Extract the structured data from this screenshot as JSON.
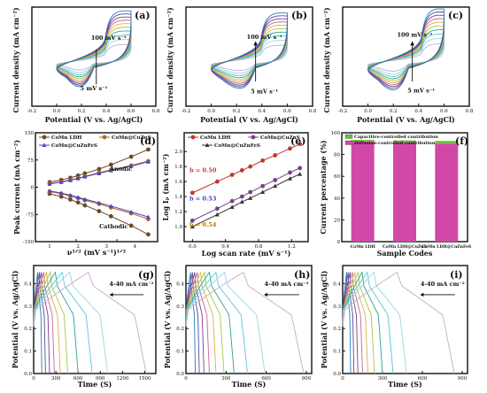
{
  "palette": [
    "#2b7bba",
    "#4d4d9a",
    "#7b3e8e",
    "#c06a8c",
    "#e0b040",
    "#a8c840",
    "#2aa68a",
    "#56c8d8",
    "#9ad4e6",
    "#c8a8d0"
  ],
  "chart_data": [
    {
      "id": "a",
      "type": "line",
      "label": "(a)",
      "xlabel": "Potential (V vs. Ag/AgCl)",
      "ylabel": "Current density (mA cm⁻²)",
      "xticks": [
        "-0.2",
        "0.0",
        "0.2",
        "0.4",
        "0.6",
        "0.8"
      ],
      "xlim": [
        -0.2,
        0.8
      ],
      "annotations": [
        "100 mV s⁻¹",
        "5 mV s⁻¹"
      ],
      "curves": 10
    },
    {
      "id": "b",
      "type": "line",
      "label": "(b)",
      "xlabel": "Potential (V vs. Ag/AgCl)",
      "ylabel": "Current density (mA cm⁻²)",
      "xticks": [
        "-0.2",
        "0.0",
        "0.2",
        "0.4",
        "0.6",
        "0.8"
      ],
      "xlim": [
        -0.2,
        0.8
      ],
      "annotations": [
        "100 mV s⁻¹",
        "5 mV s⁻¹"
      ],
      "curves": 10
    },
    {
      "id": "c",
      "type": "line",
      "label": "(c)",
      "xlabel": "Potential (V vs. Ag/AgCl)",
      "ylabel": "Current density (mA cm⁻²)",
      "xticks": [
        "-0.2",
        "0.0",
        "0.2",
        "0.4",
        "0.6",
        "0.8"
      ],
      "xlim": [
        -0.2,
        0.8
      ],
      "annotations": [
        "100 mV s⁻¹",
        "5 mV s⁻¹"
      ],
      "curves": 10
    },
    {
      "id": "d",
      "type": "line",
      "label": "(d)",
      "xlabel": "ν¹ᐟ² (mV s⁻¹)¹ᐟ²",
      "ylabel": "Peak current  (mA cm⁻²)",
      "xticks": [
        "1",
        "2",
        "3",
        "4"
      ],
      "xlim": [
        0.5,
        4.8
      ],
      "yticks": [
        "150",
        "75",
        "0",
        "-75",
        "-150"
      ],
      "ylim": [
        -150,
        150
      ],
      "annotations": [
        "Anodic",
        "Cathodic"
      ],
      "x": [
        1.0,
        1.41,
        1.73,
        2.0,
        2.24,
        2.74,
        3.16,
        3.87,
        4.47
      ],
      "series": [
        {
          "name": "CoMn LDH",
          "color": "#6b4a26",
          "marker": "circle",
          "anodic": [
            14,
            20,
            26,
            32,
            38,
            50,
            62,
            84,
            104
          ],
          "cathodic": [
            -18,
            -26,
            -34,
            -42,
            -50,
            -66,
            -80,
            -106,
            -130
          ]
        },
        {
          "name": "CoMn@CuZnS",
          "color": "#b06820",
          "marker": "circle",
          "anodic": [
            10,
            15,
            20,
            25,
            30,
            40,
            48,
            60,
            72
          ],
          "cathodic": [
            -12,
            -18,
            -24,
            -30,
            -36,
            -46,
            -56,
            -72,
            -88
          ]
        },
        {
          "name": "CoMn@CuZnFeS",
          "color": "#4848c0",
          "marker": "triangle",
          "anodic": [
            9,
            14,
            19,
            24,
            29,
            38,
            46,
            58,
            70
          ],
          "cathodic": [
            -10,
            -16,
            -22,
            -28,
            -33,
            -43,
            -52,
            -68,
            -82
          ]
        }
      ]
    },
    {
      "id": "e",
      "type": "line",
      "label": "(e)",
      "xlabel": "Log scan rate (mV s⁻¹)",
      "ylabel": "Log Iₚ (mA cm⁻²)",
      "xticks": [
        "0.0",
        "0.4",
        "0.8",
        "1.2"
      ],
      "xlim": [
        -0.1,
        1.4
      ],
      "yticks": [
        "2.0",
        "1.8",
        "1.6",
        "1.4",
        "1.2",
        "1.0"
      ],
      "ylim": [
        0.8,
        2.25
      ],
      "x": [
        0.0,
        0.3,
        0.48,
        0.6,
        0.7,
        0.85,
        1.0,
        1.18,
        1.3
      ],
      "series": [
        {
          "name": "CoMn LDH",
          "color": "#c0392b",
          "marker": "circle",
          "values": [
            1.45,
            1.6,
            1.69,
            1.75,
            1.8,
            1.88,
            1.95,
            2.04,
            2.1
          ],
          "slope": "b = 0.50"
        },
        {
          "name": "CoMn@CuZnS",
          "color": "#7b3e8e",
          "marker": "circle",
          "values": [
            1.08,
            1.24,
            1.34,
            1.4,
            1.46,
            1.54,
            1.62,
            1.72,
            1.78
          ],
          "slope": "b = 0.53"
        },
        {
          "name": "CoMn@CuZnFeS",
          "color": "#333333",
          "marker": "triangle",
          "values": [
            1.0,
            1.16,
            1.26,
            1.33,
            1.38,
            1.46,
            1.54,
            1.64,
            1.7
          ],
          "slope": "b = 0.54"
        }
      ]
    },
    {
      "id": "f",
      "type": "bar",
      "label": "(f)",
      "xlabel": "Sample Codes",
      "ylabel": "Current percentage (%)",
      "categories": [
        "CoMn LDH",
        "CoMn LDH@CuZnS",
        "CoMn LDH@CuZnFeS"
      ],
      "yticks": [
        "100",
        "80",
        "60",
        "40",
        "20",
        "0"
      ],
      "ylim": [
        0,
        100
      ],
      "legend": [
        "Capacitive-controlled contribution",
        "Diffusion-controlled contribution"
      ],
      "series": [
        {
          "name": "Capacitive-controlled contribution",
          "color": "#6cbf3a",
          "values": [
            1.5,
            2.0,
            2.5
          ]
        },
        {
          "name": "Diffusion-controlled contribution",
          "color": "#d248a8",
          "values": [
            92,
            91,
            90
          ]
        }
      ]
    },
    {
      "id": "g",
      "type": "line",
      "label": "(g)",
      "xlabel": "Time (S)",
      "ylabel": "Potential (V vs. Ag/AgCl)",
      "xticks": [
        "0",
        "300",
        "600",
        "900",
        "1200",
        "1500"
      ],
      "xlim": [
        0,
        1650
      ],
      "yticks": [
        "0.4",
        "0.3",
        "0.2",
        "0.1",
        "0.0"
      ],
      "ylim": [
        0,
        0.48
      ],
      "annotations": [
        "4-40 mA cm⁻²"
      ],
      "discharge_end_times": [
        110,
        160,
        215,
        280,
        360,
        460,
        600,
        790,
        1000,
        1520
      ]
    },
    {
      "id": "h",
      "type": "line",
      "label": "(h)",
      "xlabel": "Time (S)",
      "ylabel": "Potential (V vs. Ag/AgCl)",
      "xticks": [
        "0",
        "300",
        "600",
        "900"
      ],
      "xlim": [
        0,
        940
      ],
      "yticks": [
        "0.4",
        "0.3",
        "0.2",
        "0.1",
        "0.0"
      ],
      "ylim": [
        0,
        0.48
      ],
      "annotations": [
        "4-40 mA cm⁻²"
      ],
      "discharge_end_times": [
        70,
        100,
        135,
        175,
        225,
        285,
        360,
        460,
        590,
        880
      ]
    },
    {
      "id": "i",
      "type": "line",
      "label": "(i)",
      "xlabel": "Time (S)",
      "ylabel": "Potential (V vs. Ag/AgCl)",
      "xticks": [
        "0",
        "300",
        "600",
        "900"
      ],
      "xlim": [
        0,
        940
      ],
      "yticks": [
        "0.4",
        "0.3",
        "0.2",
        "0.1",
        "0.0"
      ],
      "ylim": [
        0,
        0.48
      ],
      "annotations": [
        "4-40 mA cm⁻²"
      ],
      "discharge_end_times": [
        60,
        85,
        115,
        150,
        190,
        240,
        300,
        380,
        480,
        840
      ]
    }
  ]
}
